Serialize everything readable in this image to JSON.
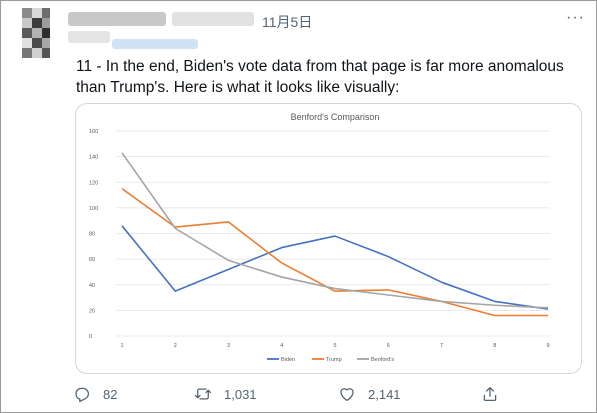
{
  "tweet": {
    "date": "11月5日",
    "more_label": "···",
    "text": "11 - In the end, Biden's vote data from that page is far more anomalous than Trump's. Here is what it looks like visually:"
  },
  "chart_data": {
    "type": "line",
    "title": "Benford's Comparison",
    "xlabel": "",
    "ylabel": "",
    "x": [
      1,
      2,
      3,
      4,
      5,
      6,
      7,
      8,
      9
    ],
    "x_tick_labels": [
      "1",
      "2",
      "3",
      "4",
      "5",
      "6",
      "7",
      "8",
      "9"
    ],
    "ylim": [
      0,
      160
    ],
    "y_ticks": [
      0,
      20,
      40,
      60,
      80,
      100,
      120,
      140,
      160
    ],
    "grid": true,
    "legend_position": "bottom",
    "series": [
      {
        "name": "Biden",
        "color": "#4472c4",
        "values": [
          86,
          35,
          52,
          69,
          78,
          62,
          42,
          27,
          21
        ]
      },
      {
        "name": "Trump",
        "color": "#ed7d31",
        "values": [
          115,
          85,
          89,
          57,
          35,
          36,
          27,
          16,
          16
        ]
      },
      {
        "name": "Benford's",
        "color": "#a5a5a5",
        "values": [
          143,
          84,
          59,
          46,
          37,
          32,
          27,
          24,
          22
        ]
      }
    ]
  },
  "actions": {
    "reply_count": "82",
    "retweet_count": "1,031",
    "like_count": "2,141"
  },
  "icons": {
    "more": "more-dots-icon",
    "reply": "reply-icon",
    "retweet": "retweet-icon",
    "like": "like-icon",
    "share": "share-icon"
  }
}
